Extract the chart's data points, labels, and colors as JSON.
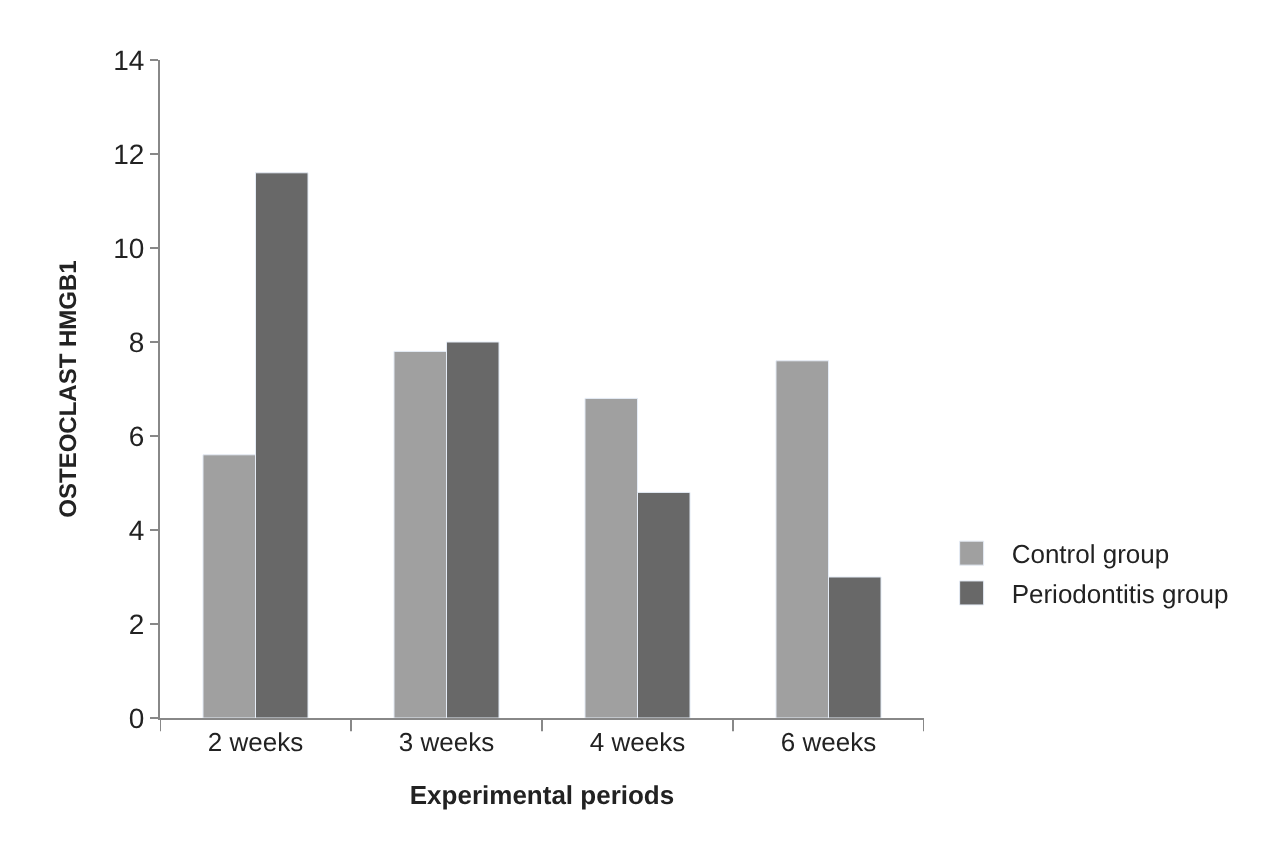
{
  "chart_data": {
    "type": "bar",
    "xlabel": "Experimental periods",
    "ylabel": "OSTEOCLAST HMGB1",
    "categories": [
      "2 weeks",
      "3 weeks",
      "4 weeks",
      "6 weeks"
    ],
    "series": [
      {
        "name": "Control group",
        "color": "#a0a0a0",
        "values": [
          5.6,
          7.8,
          6.8,
          7.6
        ]
      },
      {
        "name": "Periodontitis group",
        "color": "#686868",
        "values": [
          11.6,
          8.0,
          4.8,
          3.0
        ]
      }
    ],
    "ylim": [
      0,
      14
    ],
    "yticks": [
      0,
      2,
      4,
      6,
      8,
      10,
      12,
      14
    ],
    "legend": "right"
  }
}
